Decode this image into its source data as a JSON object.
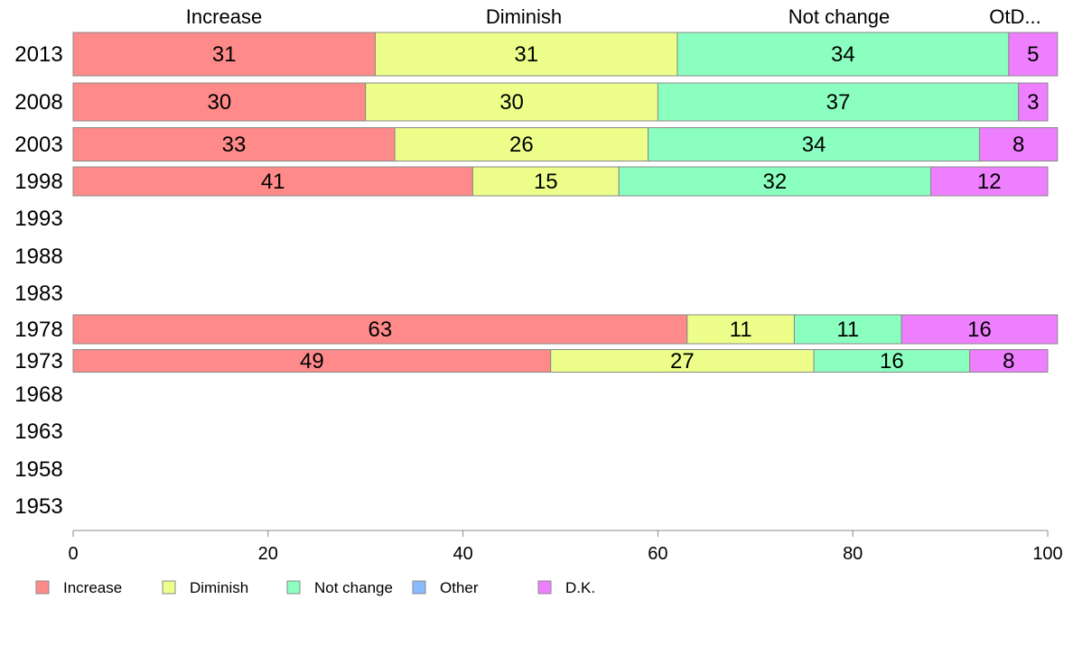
{
  "chart_data": {
    "type": "bar",
    "orientation": "horizontal",
    "stacked": true,
    "categories": [
      "2013",
      "2008",
      "2003",
      "1998",
      "1993",
      "1988",
      "1983",
      "1978",
      "1973",
      "1968",
      "1963",
      "1958",
      "1953"
    ],
    "series": [
      {
        "name": "Increase",
        "color": "#ff8a8a",
        "values": [
          31,
          30,
          33,
          41,
          null,
          null,
          null,
          63,
          49,
          null,
          null,
          null,
          null
        ]
      },
      {
        "name": "Diminish",
        "color": "#edff8a",
        "values": [
          31,
          30,
          26,
          15,
          null,
          null,
          null,
          11,
          27,
          null,
          null,
          null,
          null
        ]
      },
      {
        "name": "Not change",
        "color": "#8affbf",
        "values": [
          34,
          37,
          34,
          32,
          null,
          null,
          null,
          11,
          16,
          null,
          null,
          null,
          null
        ]
      },
      {
        "name": "Other",
        "color": "#8abaff",
        "values": [
          0,
          0,
          0,
          0,
          null,
          null,
          null,
          0,
          0,
          null,
          null,
          null,
          null
        ]
      },
      {
        "name": "D.K.",
        "color": "#ee7fff",
        "values": [
          5,
          3,
          8,
          12,
          null,
          null,
          null,
          16,
          8,
          null,
          null,
          null,
          null
        ]
      }
    ],
    "top_labels": [
      "Increase",
      "Diminish",
      "Not change",
      "OtD..."
    ],
    "xlim": [
      0,
      100
    ],
    "xticks": [
      0,
      20,
      40,
      60,
      80,
      100
    ],
    "grid": false,
    "legend_position": "bottom-left"
  }
}
